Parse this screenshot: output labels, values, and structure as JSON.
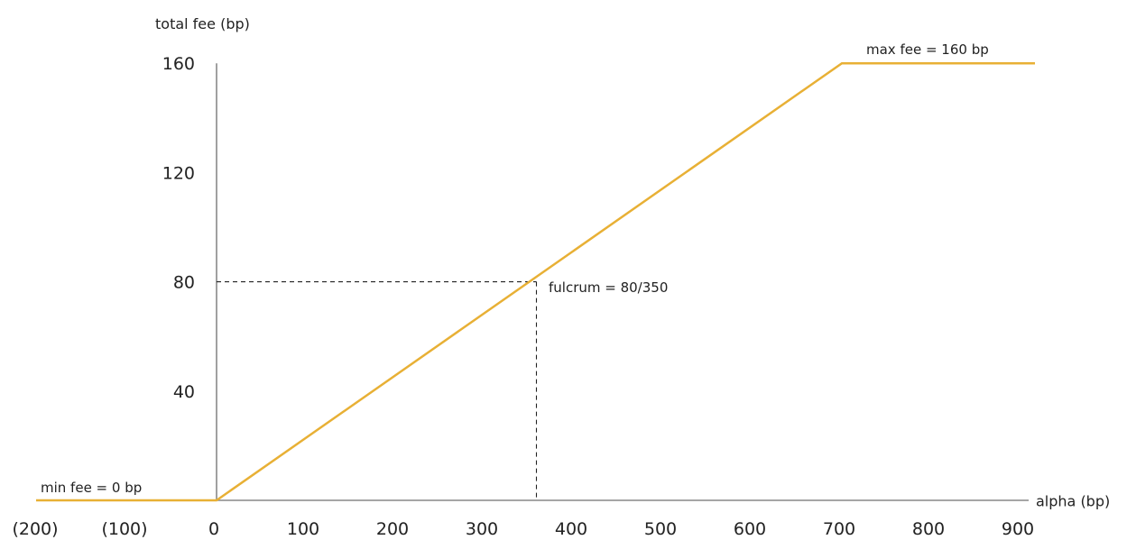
{
  "chart_data": {
    "type": "line",
    "xlabel": "alpha (bp)",
    "ylabel": "total fee (bp)",
    "xlim": [
      -200,
      900
    ],
    "ylim": [
      0,
      160
    ],
    "x_ticks": [
      -200,
      -100,
      0,
      100,
      200,
      300,
      400,
      500,
      600,
      700,
      800,
      900
    ],
    "x_tick_labels": [
      "(200)",
      "(100)",
      "0",
      "100",
      "200",
      "300",
      "400",
      "500",
      "600",
      "700",
      "800",
      "900"
    ],
    "y_ticks": [
      40,
      80,
      120,
      160
    ],
    "y_tick_labels": [
      "40",
      "80",
      "120",
      "160"
    ],
    "grid": false,
    "series": [
      {
        "color": "#E8B035",
        "x": [
          -200,
          0,
          700,
          900
        ],
        "y": [
          0,
          0,
          160,
          160
        ]
      }
    ],
    "fulcrum": {
      "x": 350,
      "y": 80
    },
    "annotations": {
      "min_fee": "min fee = 0 bp",
      "max_fee": "max fee = 160 bp",
      "fulcrum": "fulcrum = 80/350"
    },
    "colors": {
      "line": "#E8B035",
      "axis": "#888888",
      "guide": "#222222"
    }
  }
}
